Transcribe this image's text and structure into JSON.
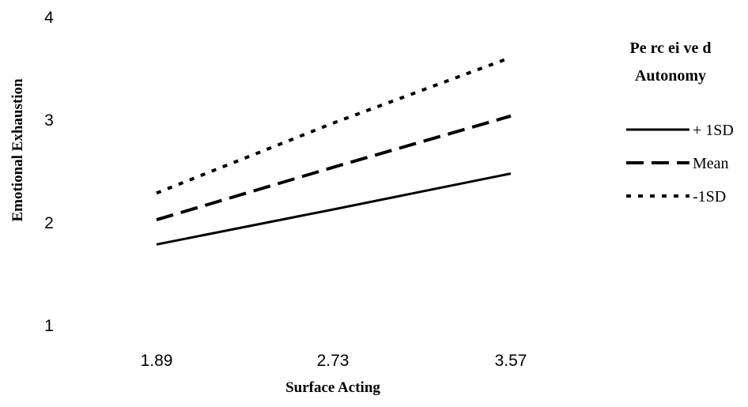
{
  "chart_data": {
    "type": "line",
    "title": "",
    "xlabel": "Surface Acting",
    "ylabel": "Emotional Exhaustion",
    "x": [
      "1.89",
      "2.73",
      "3.57"
    ],
    "yticks": [
      "1",
      "2",
      "3",
      "4"
    ],
    "ylim": [
      1,
      4
    ],
    "grid": false,
    "legend_title": [
      "Pe rc ei ve d",
      "Autonomy"
    ],
    "legend_position": "right",
    "series": [
      {
        "name": "+ 1SD",
        "style": "solid",
        "values": [
          1.79,
          2.13,
          2.48
        ]
      },
      {
        "name": "Mean",
        "style": "dashed",
        "values": [
          2.03,
          2.54,
          3.04
        ]
      },
      {
        "name": "-1SD",
        "style": "dotted",
        "values": [
          2.29,
          2.97,
          3.61
        ]
      }
    ]
  }
}
